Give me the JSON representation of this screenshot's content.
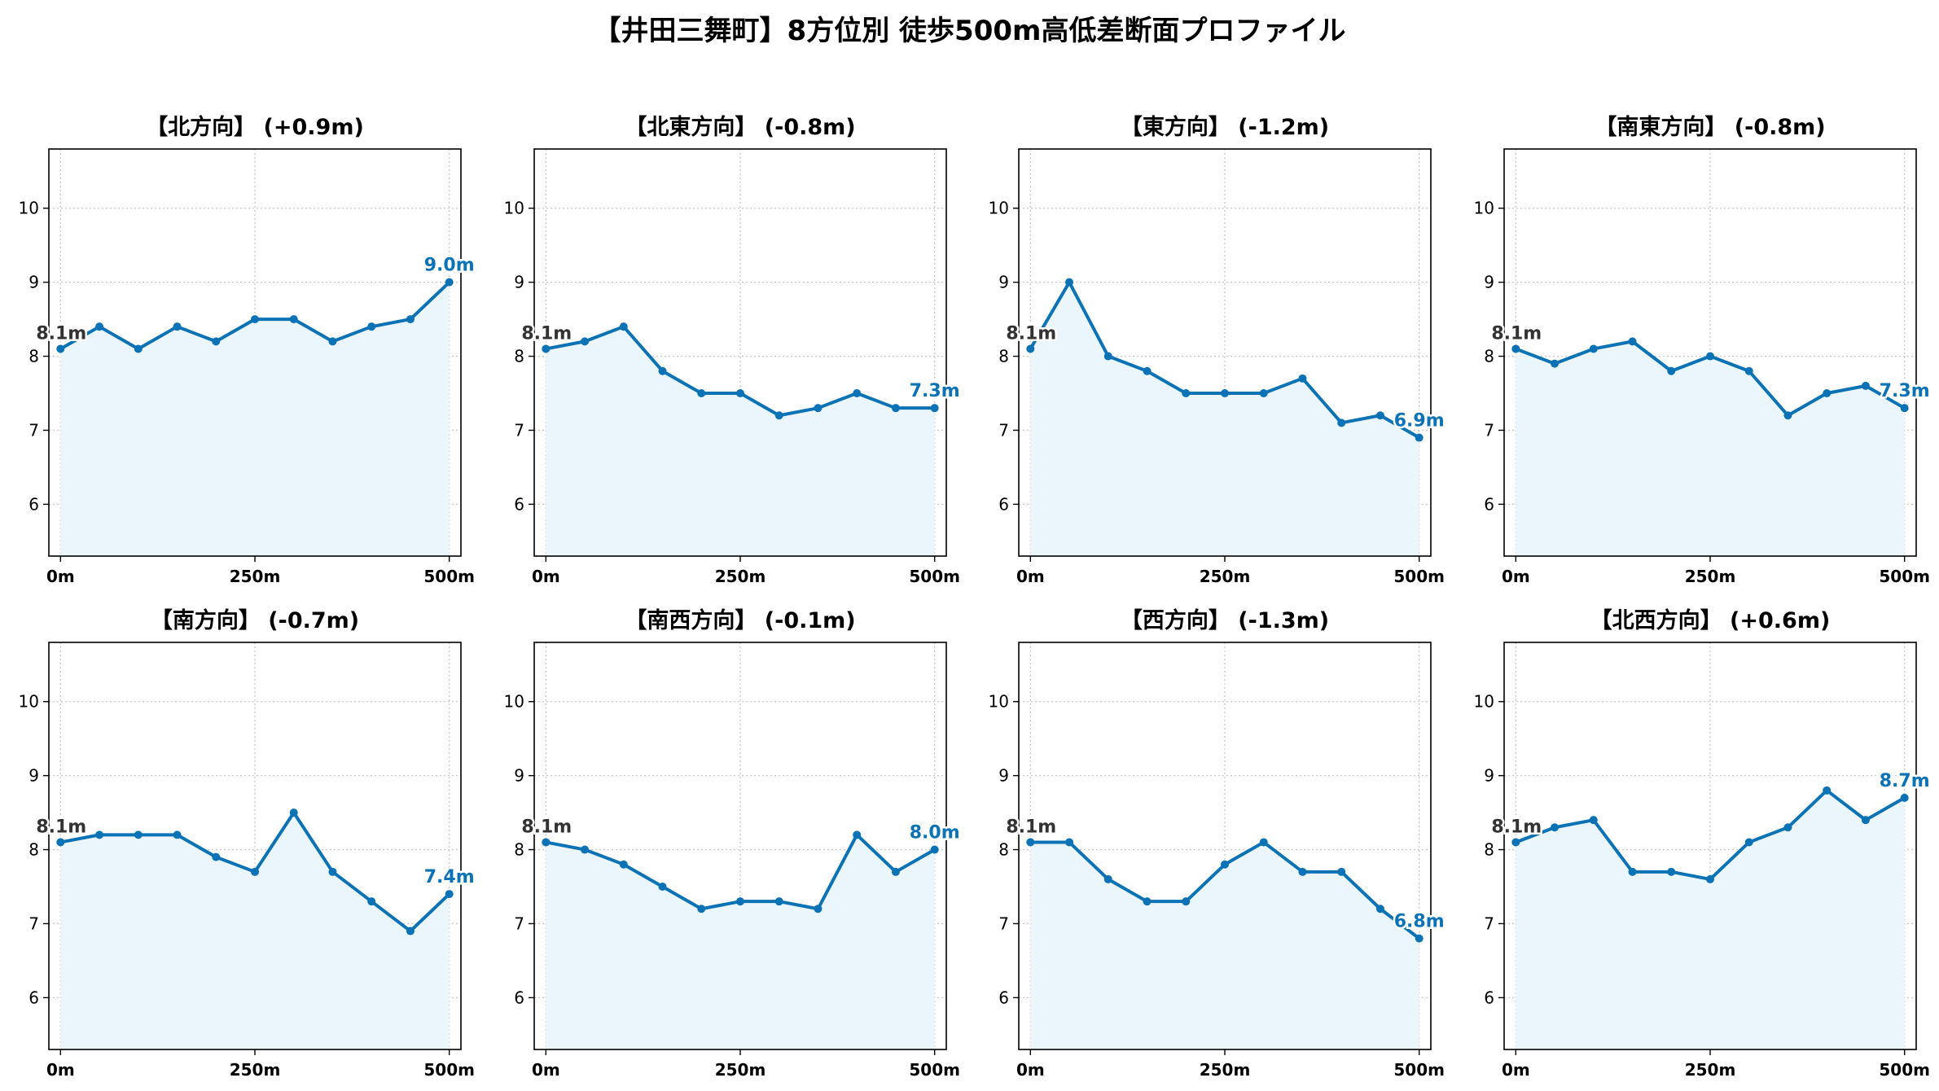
{
  "title": "【井田三舞町】8方位別 徒歩500m高低差断面プロファイル",
  "colors": {
    "line": "#0a72b5",
    "fill": "#eaf6fb",
    "grid": "#c8c8c8",
    "start_label": "#333333"
  },
  "chart_data": [
    {
      "type": "area",
      "title": "【北方向】 (+0.9m)",
      "x": [
        0,
        50,
        100,
        150,
        200,
        250,
        300,
        350,
        400,
        450,
        500
      ],
      "y": [
        8.1,
        8.4,
        8.1,
        8.4,
        8.2,
        8.5,
        8.5,
        8.2,
        8.4,
        8.5,
        9.0
      ],
      "start_label": "8.1m",
      "end_label": "9.0m"
    },
    {
      "type": "area",
      "title": "【北東方向】 (-0.8m)",
      "x": [
        0,
        50,
        100,
        150,
        200,
        250,
        300,
        350,
        400,
        450,
        500
      ],
      "y": [
        8.1,
        8.2,
        8.4,
        7.8,
        7.5,
        7.5,
        7.2,
        7.3,
        7.5,
        7.3,
        7.3
      ],
      "start_label": "8.1m",
      "end_label": "7.3m"
    },
    {
      "type": "area",
      "title": "【東方向】 (-1.2m)",
      "x": [
        0,
        50,
        100,
        150,
        200,
        250,
        300,
        350,
        400,
        450,
        500
      ],
      "y": [
        8.1,
        9.0,
        8.0,
        7.8,
        7.5,
        7.5,
        7.5,
        7.7,
        7.1,
        7.2,
        6.9
      ],
      "start_label": "8.1m",
      "end_label": "6.9m"
    },
    {
      "type": "area",
      "title": "【南東方向】 (-0.8m)",
      "x": [
        0,
        50,
        100,
        150,
        200,
        250,
        300,
        350,
        400,
        450,
        500
      ],
      "y": [
        8.1,
        7.9,
        8.1,
        8.2,
        7.8,
        8.0,
        7.8,
        7.2,
        7.5,
        7.6,
        7.3
      ],
      "start_label": "8.1m",
      "end_label": "7.3m"
    },
    {
      "type": "area",
      "title": "【南方向】 (-0.7m)",
      "x": [
        0,
        50,
        100,
        150,
        200,
        250,
        300,
        350,
        400,
        450,
        500
      ],
      "y": [
        8.1,
        8.2,
        8.2,
        8.2,
        7.9,
        7.7,
        8.5,
        7.7,
        7.3,
        6.9,
        7.4
      ],
      "start_label": "8.1m",
      "end_label": "7.4m"
    },
    {
      "type": "area",
      "title": "【南西方向】 (-0.1m)",
      "x": [
        0,
        50,
        100,
        150,
        200,
        250,
        300,
        350,
        400,
        450,
        500
      ],
      "y": [
        8.1,
        8.0,
        7.8,
        7.5,
        7.2,
        7.3,
        7.3,
        7.2,
        8.2,
        7.7,
        8.0
      ],
      "start_label": "8.1m",
      "end_label": "8.0m"
    },
    {
      "type": "area",
      "title": "【西方向】 (-1.3m)",
      "x": [
        0,
        50,
        100,
        150,
        200,
        250,
        300,
        350,
        400,
        450,
        500
      ],
      "y": [
        8.1,
        8.1,
        7.6,
        7.3,
        7.3,
        7.8,
        8.1,
        7.7,
        7.7,
        7.2,
        6.8
      ],
      "start_label": "8.1m",
      "end_label": "6.8m"
    },
    {
      "type": "area",
      "title": "【北西方向】 (+0.6m)",
      "x": [
        0,
        50,
        100,
        150,
        200,
        250,
        300,
        350,
        400,
        450,
        500
      ],
      "y": [
        8.1,
        8.3,
        8.4,
        7.7,
        7.7,
        7.6,
        8.1,
        8.3,
        8.8,
        8.4,
        8.7
      ],
      "start_label": "8.1m",
      "end_label": "8.7m"
    }
  ],
  "axes": {
    "xlim": [
      -15,
      515
    ],
    "ylim": [
      5.3,
      10.8
    ],
    "x_ticks": [
      0,
      250,
      500
    ],
    "x_tick_labels": [
      "0m",
      "250m",
      "500m"
    ],
    "y_ticks": [
      6,
      7,
      8,
      9,
      10
    ],
    "y_tick_labels": [
      "6",
      "7",
      "8",
      "9",
      "10"
    ],
    "grid": true
  }
}
